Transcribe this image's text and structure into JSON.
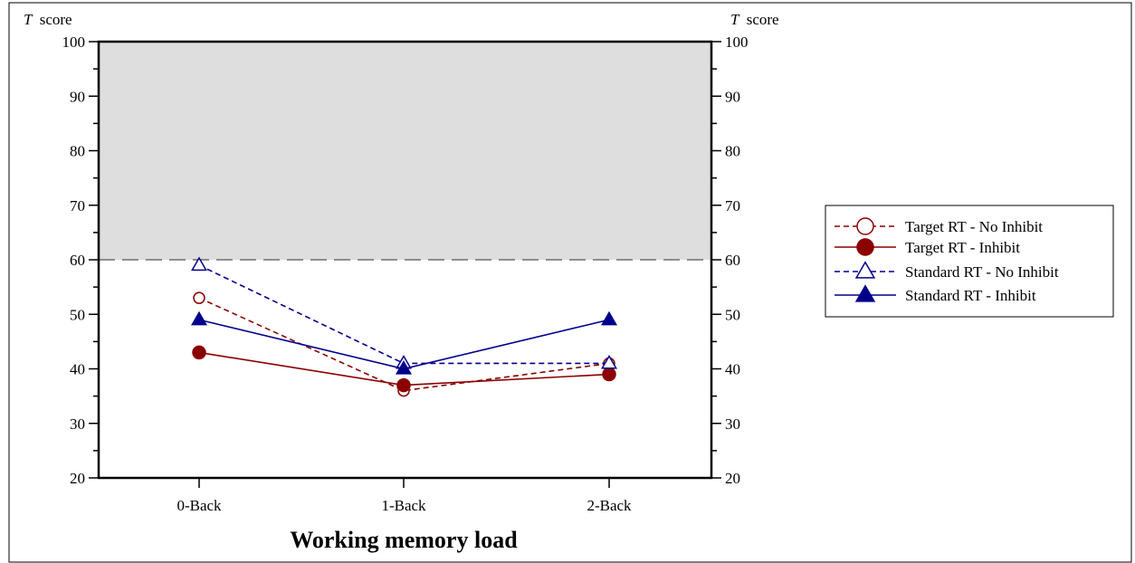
{
  "chart_data": {
    "type": "line",
    "title": "",
    "xlabel": "Working memory load",
    "ylabel": "T score",
    "ylabel_italic_prefix": "T",
    "ylabel_suffix": "score",
    "ylim": [
      20,
      100
    ],
    "yticks": [
      "20",
      "30",
      "40",
      "50",
      "60",
      "70",
      "80",
      "90",
      "100"
    ],
    "threshold": 60,
    "shaded_region": [
      60,
      100
    ],
    "categories": [
      "0-Back",
      "1-Back",
      "2-Back"
    ],
    "legend_position": "right",
    "series": [
      {
        "name": "Target RT - No Inhibit",
        "values": [
          53,
          36,
          41
        ],
        "color": "#8b0000",
        "dashed": true,
        "marker": "circle",
        "filled": false
      },
      {
        "name": "Target RT - Inhibit",
        "values": [
          43,
          37,
          39
        ],
        "color": "#8b0000",
        "dashed": false,
        "marker": "circle",
        "filled": true
      },
      {
        "name": "Standard RT - No Inhibit",
        "values": [
          59,
          41,
          41
        ],
        "color": "#00008b",
        "dashed": true,
        "marker": "triangle",
        "filled": false
      },
      {
        "name": "Standard RT - Inhibit",
        "values": [
          49,
          40,
          49
        ],
        "color": "#00008b",
        "dashed": false,
        "marker": "triangle",
        "filled": true
      }
    ]
  }
}
